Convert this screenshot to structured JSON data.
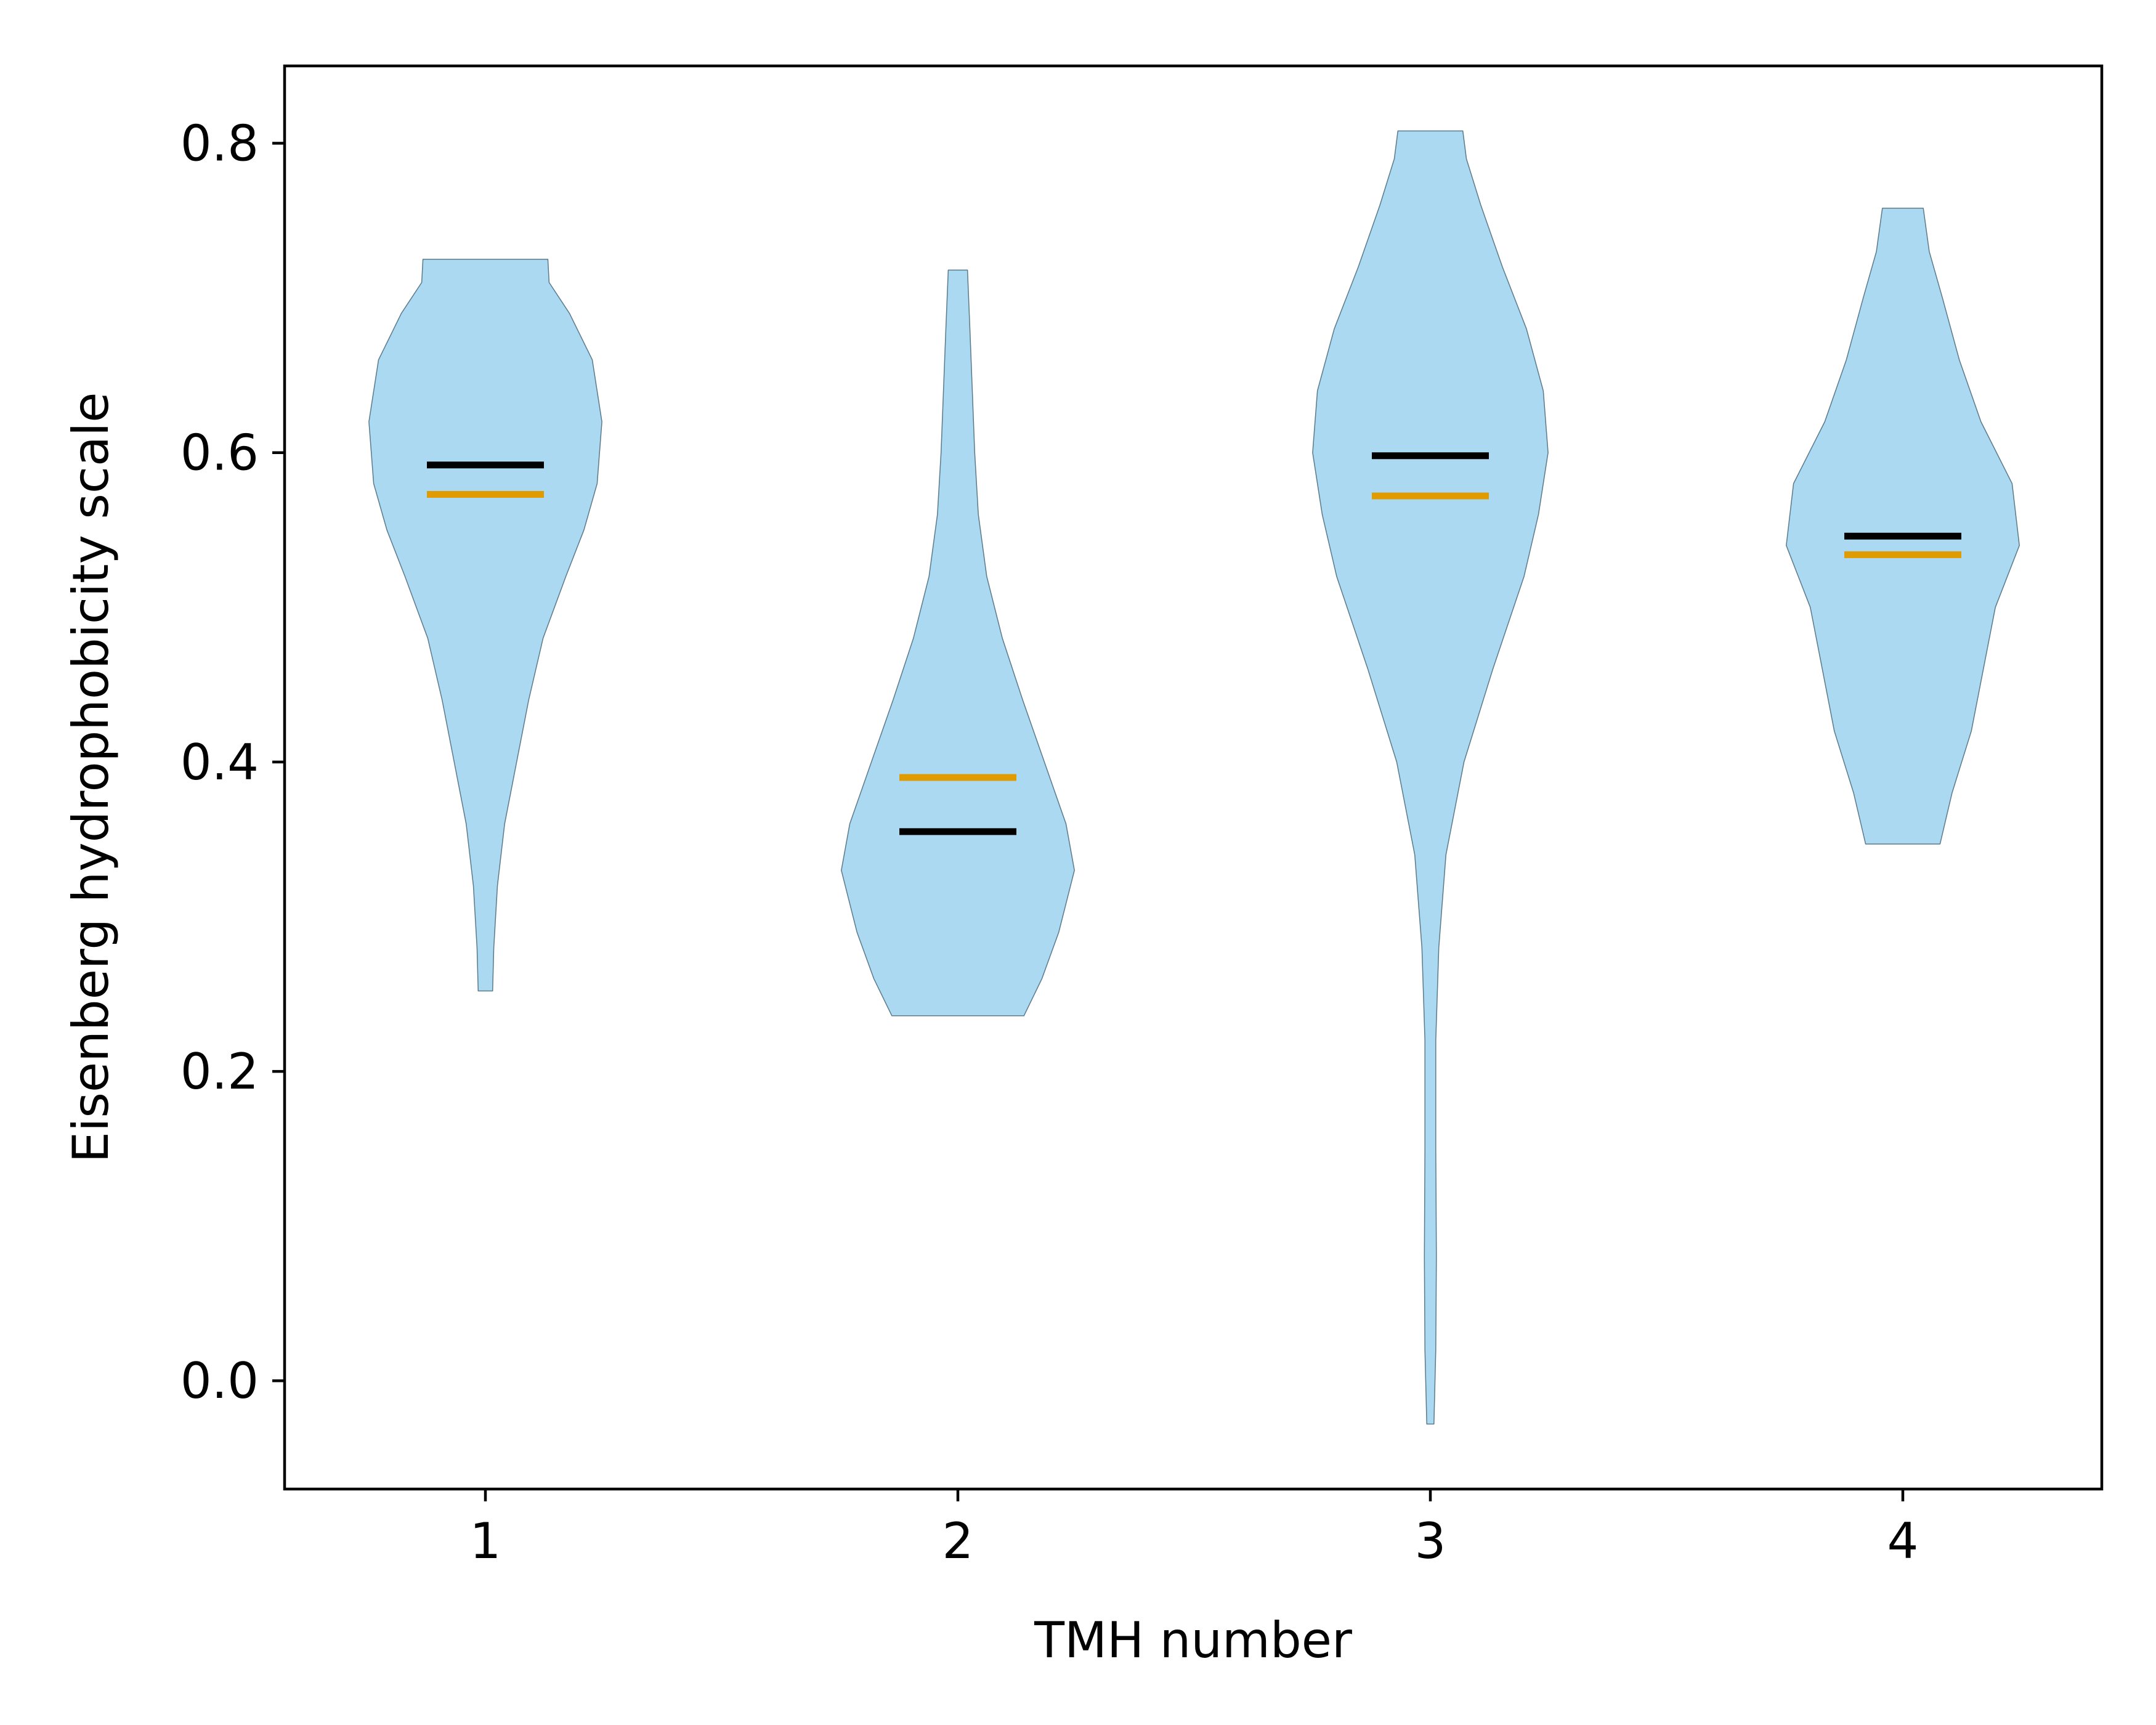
{
  "chart_data": {
    "type": "violin",
    "title": "",
    "xlabel": "TMH number",
    "ylabel": "Eisenberg hydrophobicity scale",
    "ylim": [
      -0.07,
      0.85
    ],
    "yticks": [
      "0.0",
      "0.2",
      "0.4",
      "0.6",
      "0.8"
    ],
    "categories": [
      "1",
      "2",
      "3",
      "4"
    ],
    "colors": {
      "violin_fill": "#abd9f2",
      "violin_edge": "#5b7a8a",
      "median_line": "#000000",
      "mean_line": "#e09b00"
    },
    "series": [
      {
        "category": "1",
        "min": 0.252,
        "max": 0.725,
        "median": 0.592,
        "mean": 0.573,
        "density": [
          [
            0.252,
            0.06
          ],
          [
            0.28,
            0.07
          ],
          [
            0.32,
            0.1
          ],
          [
            0.36,
            0.16
          ],
          [
            0.4,
            0.26
          ],
          [
            0.44,
            0.36
          ],
          [
            0.48,
            0.48
          ],
          [
            0.52,
            0.67
          ],
          [
            0.55,
            0.82
          ],
          [
            0.58,
            0.93
          ],
          [
            0.62,
            0.97
          ],
          [
            0.66,
            0.89
          ],
          [
            0.69,
            0.7
          ],
          [
            0.71,
            0.53
          ],
          [
            0.725,
            0.52
          ]
        ]
      },
      {
        "category": "2",
        "min": 0.236,
        "max": 0.718,
        "median": 0.355,
        "mean": 0.39,
        "density": [
          [
            0.236,
            0.55
          ],
          [
            0.26,
            0.7
          ],
          [
            0.29,
            0.84
          ],
          [
            0.33,
            0.97
          ],
          [
            0.36,
            0.9
          ],
          [
            0.4,
            0.72
          ],
          [
            0.44,
            0.54
          ],
          [
            0.48,
            0.37
          ],
          [
            0.52,
            0.24
          ],
          [
            0.56,
            0.17
          ],
          [
            0.6,
            0.14
          ],
          [
            0.64,
            0.12
          ],
          [
            0.68,
            0.1
          ],
          [
            0.718,
            0.08
          ]
        ]
      },
      {
        "category": "3",
        "min": -0.028,
        "max": 0.808,
        "median": 0.598,
        "mean": 0.572,
        "density": [
          [
            -0.028,
            0.03
          ],
          [
            0.02,
            0.045
          ],
          [
            0.08,
            0.05
          ],
          [
            0.15,
            0.045
          ],
          [
            0.22,
            0.045
          ],
          [
            0.28,
            0.07
          ],
          [
            0.34,
            0.13
          ],
          [
            0.4,
            0.28
          ],
          [
            0.46,
            0.52
          ],
          [
            0.52,
            0.78
          ],
          [
            0.56,
            0.9
          ],
          [
            0.6,
            0.98
          ],
          [
            0.64,
            0.94
          ],
          [
            0.68,
            0.8
          ],
          [
            0.72,
            0.6
          ],
          [
            0.76,
            0.42
          ],
          [
            0.79,
            0.3
          ],
          [
            0.808,
            0.27
          ]
        ]
      },
      {
        "category": "4",
        "min": 0.347,
        "max": 0.758,
        "median": 0.546,
        "mean": 0.534,
        "density": [
          [
            0.347,
            0.31
          ],
          [
            0.38,
            0.41
          ],
          [
            0.42,
            0.57
          ],
          [
            0.46,
            0.67
          ],
          [
            0.5,
            0.77
          ],
          [
            0.54,
            0.97
          ],
          [
            0.58,
            0.91
          ],
          [
            0.62,
            0.65
          ],
          [
            0.66,
            0.47
          ],
          [
            0.7,
            0.33
          ],
          [
            0.73,
            0.22
          ],
          [
            0.758,
            0.17
          ]
        ]
      }
    ]
  }
}
